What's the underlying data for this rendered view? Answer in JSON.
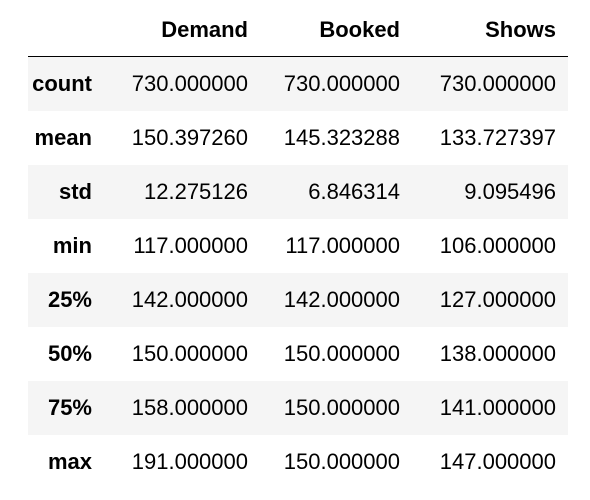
{
  "table": {
    "columns": [
      "",
      "Demand",
      "Booked",
      "Shows"
    ],
    "rows": [
      {
        "label": "count",
        "values": [
          "730.000000",
          "730.000000",
          "730.000000"
        ]
      },
      {
        "label": "mean",
        "values": [
          "150.397260",
          "145.323288",
          "133.727397"
        ]
      },
      {
        "label": "std",
        "values": [
          "12.275126",
          "6.846314",
          "9.095496"
        ]
      },
      {
        "label": "min",
        "values": [
          "117.000000",
          "117.000000",
          "106.000000"
        ]
      },
      {
        "label": "25%",
        "values": [
          "142.000000",
          "142.000000",
          "127.000000"
        ]
      },
      {
        "label": "50%",
        "values": [
          "150.000000",
          "150.000000",
          "138.000000"
        ]
      },
      {
        "label": "75%",
        "values": [
          "158.000000",
          "150.000000",
          "141.000000"
        ]
      },
      {
        "label": "max",
        "values": [
          "191.000000",
          "150.000000",
          "147.000000"
        ]
      }
    ]
  },
  "colors": {
    "stripe": "#f5f5f5",
    "text": "#000000",
    "background": "#ffffff"
  }
}
